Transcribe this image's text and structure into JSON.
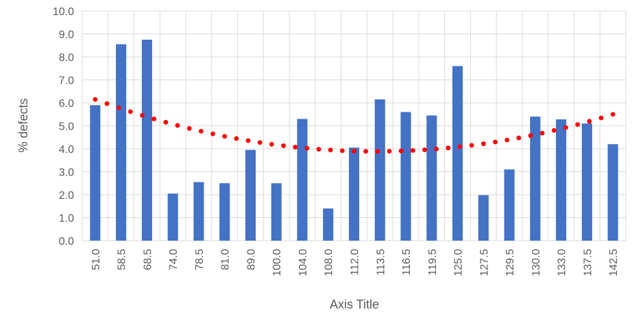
{
  "chart_data": {
    "type": "bar",
    "title": "",
    "xlabel": "Axis Title",
    "ylabel": "% defects",
    "ylim": [
      0,
      10
    ],
    "y_ticks": [
      "0.0",
      "1.0",
      "2.0",
      "3.0",
      "4.0",
      "5.0",
      "6.0",
      "7.0",
      "8.0",
      "9.0",
      "10.0"
    ],
    "categories": [
      "51.0",
      "58.5",
      "68.5",
      "74.0",
      "78.5",
      "81.0",
      "89.0",
      "100.0",
      "104.0",
      "108.0",
      "112.0",
      "113.5",
      "116.5",
      "119.5",
      "125.0",
      "127.5",
      "129.5",
      "130.0",
      "133.0",
      "137.5",
      "142.5"
    ],
    "values": [
      5.9,
      8.55,
      8.75,
      2.05,
      2.55,
      2.5,
      3.95,
      2.5,
      5.3,
      1.4,
      4.05,
      6.15,
      5.6,
      5.45,
      7.6,
      1.98,
      3.1,
      5.4,
      5.28,
      5.1,
      4.2
    ],
    "trendline": {
      "type": "polynomial",
      "order": 2,
      "start": 6.15,
      "min": 3.9,
      "end": 5.5
    },
    "grid": true,
    "colors": {
      "bar": "#4472C4",
      "trendline": "#FF0000",
      "grid": "#D9D9D9",
      "text": "#595959"
    }
  }
}
